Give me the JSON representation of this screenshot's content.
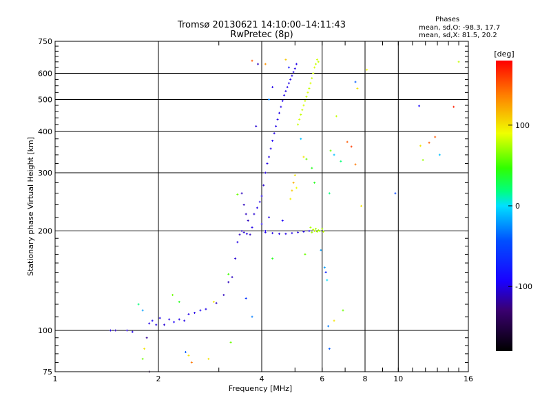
{
  "chart_data": {
    "type": "scatter",
    "title": "Tromsø 20130621 14:10:00–14:11:43",
    "subtitle": "RwPretec (8p)",
    "xlabel": "Frequency [MHz]",
    "ylabel": "Stationary phase Virtual Height [km]",
    "x_scale": "log2",
    "y_scale": "log",
    "xlim": [
      1,
      16
    ],
    "ylim": [
      75,
      750
    ],
    "x_ticks": [
      {
        "v": 1,
        "label": "1"
      },
      {
        "v": 2,
        "label": "2"
      },
      {
        "v": 4,
        "label": "4"
      },
      {
        "v": 6,
        "label": "6"
      },
      {
        "v": 8,
        "label": "8"
      },
      {
        "v": 10,
        "label": "10"
      },
      {
        "v": 16,
        "label": "16"
      }
    ],
    "x_grid": [
      2,
      4,
      6,
      8,
      10
    ],
    "y_ticks": [
      {
        "v": 75,
        "label": "75"
      },
      {
        "v": 100,
        "label": "100"
      },
      {
        "v": 200,
        "label": "200"
      },
      {
        "v": 300,
        "label": "300"
      },
      {
        "v": 400,
        "label": "400"
      },
      {
        "v": 500,
        "label": "500"
      },
      {
        "v": 600,
        "label": "600"
      },
      {
        "v": 750,
        "label": "750"
      }
    ],
    "y_grid": [
      100,
      200,
      300,
      400,
      500,
      600
    ],
    "grid": true,
    "stats": {
      "heading": "Phases",
      "line1": "mean, sd,O: -98.3, 17.7",
      "line2": "mean, sd,X:  81.5, 20.2"
    },
    "colorbar": {
      "label": "[deg]",
      "range": [
        -180,
        180
      ],
      "ticks": [
        {
          "v": 100,
          "label": "100"
        },
        {
          "v": 0,
          "label": "0"
        },
        {
          "v": -100,
          "label": "-100"
        }
      ]
    },
    "series": [
      {
        "mode": "O",
        "points": [
          [
            1.45,
            100,
            -100
          ],
          [
            1.5,
            100,
            -110
          ],
          [
            1.62,
            100,
            -105
          ],
          [
            1.68,
            99,
            -100
          ],
          [
            1.88,
            105,
            -100
          ],
          [
            1.92,
            107,
            -95
          ],
          [
            1.97,
            104,
            -100
          ],
          [
            2.02,
            109,
            -100
          ],
          [
            2.08,
            104,
            -105
          ],
          [
            2.15,
            108,
            -100
          ],
          [
            2.22,
            106,
            -95
          ],
          [
            2.3,
            108,
            -100
          ],
          [
            2.38,
            107,
            -100
          ],
          [
            2.45,
            112,
            -100
          ],
          [
            2.55,
            113,
            -100
          ],
          [
            2.65,
            115,
            -95
          ],
          [
            2.75,
            116,
            -100
          ],
          [
            2.95,
            121,
            -110
          ],
          [
            3.1,
            128,
            -110
          ],
          [
            3.2,
            140,
            -110
          ],
          [
            3.28,
            145,
            -110
          ],
          [
            3.35,
            165,
            -105
          ],
          [
            3.4,
            185,
            -100
          ],
          [
            3.45,
            195,
            -110
          ],
          [
            3.5,
            200,
            -110
          ],
          [
            3.55,
            198,
            -105
          ],
          [
            3.62,
            196,
            -100
          ],
          [
            3.7,
            195,
            -110
          ],
          [
            3.75,
            205,
            -100
          ],
          [
            3.8,
            225,
            -105
          ],
          [
            3.88,
            235,
            -100
          ],
          [
            3.95,
            245,
            -100
          ],
          [
            4.0,
            255,
            -100
          ],
          [
            4.05,
            275,
            -105
          ],
          [
            4.1,
            300,
            -100
          ],
          [
            4.15,
            320,
            -100
          ],
          [
            4.2,
            335,
            -100
          ],
          [
            4.25,
            355,
            -100
          ],
          [
            4.3,
            375,
            -95
          ],
          [
            4.35,
            395,
            -100
          ],
          [
            4.4,
            415,
            -100
          ],
          [
            4.45,
            435,
            -100
          ],
          [
            4.5,
            455,
            -100
          ],
          [
            4.55,
            475,
            -100
          ],
          [
            4.6,
            495,
            -100
          ],
          [
            4.65,
            515,
            -100
          ],
          [
            4.7,
            530,
            -100
          ],
          [
            4.75,
            545,
            -100
          ],
          [
            4.8,
            560,
            -100
          ],
          [
            4.85,
            575,
            -100
          ],
          [
            4.9,
            590,
            -100
          ],
          [
            4.95,
            605,
            -100
          ],
          [
            5.0,
            620,
            -100
          ],
          [
            5.05,
            640,
            -100
          ],
          [
            4.1,
            198,
            -100
          ],
          [
            4.3,
            197,
            -100
          ],
          [
            4.5,
            196,
            -100
          ],
          [
            4.7,
            196,
            -100
          ],
          [
            4.9,
            197,
            -100
          ],
          [
            5.1,
            198,
            -100
          ],
          [
            5.3,
            199,
            -100
          ],
          [
            5.5,
            200,
            -100
          ],
          [
            3.5,
            260,
            -110
          ],
          [
            3.55,
            240,
            -110
          ],
          [
            3.6,
            225,
            -110
          ],
          [
            3.65,
            215,
            -110
          ],
          [
            4.0,
            210,
            -100
          ],
          [
            4.2,
            220,
            -100
          ],
          [
            3.85,
            415,
            -105
          ],
          [
            4.3,
            545,
            -100
          ],
          [
            4.1,
            200,
            -95
          ],
          [
            4.6,
            215,
            -95
          ]
        ]
      },
      {
        "mode": "X",
        "points": [
          [
            5.1,
            420,
            80
          ],
          [
            5.15,
            435,
            85
          ],
          [
            5.2,
            450,
            80
          ],
          [
            5.25,
            465,
            82
          ],
          [
            5.3,
            480,
            85
          ],
          [
            5.35,
            495,
            80
          ],
          [
            5.4,
            510,
            82
          ],
          [
            5.45,
            525,
            85
          ],
          [
            5.5,
            540,
            80
          ],
          [
            5.55,
            560,
            85
          ],
          [
            5.6,
            580,
            80
          ],
          [
            5.65,
            600,
            82
          ],
          [
            5.7,
            625,
            85
          ],
          [
            5.75,
            640,
            80
          ],
          [
            5.8,
            660,
            82
          ],
          [
            5.85,
            650,
            80
          ],
          [
            4.85,
            250,
            95
          ],
          [
            4.9,
            265,
            110
          ],
          [
            4.95,
            280,
            120
          ],
          [
            5.0,
            295,
            100
          ],
          [
            5.05,
            270,
            90
          ],
          [
            5.55,
            205,
            75
          ],
          [
            5.6,
            198,
            72
          ],
          [
            5.65,
            202,
            78
          ],
          [
            5.7,
            200,
            80
          ],
          [
            5.75,
            203,
            74
          ],
          [
            5.8,
            199,
            76
          ],
          [
            5.85,
            201,
            72
          ],
          [
            5.9,
            200,
            70
          ],
          [
            6.0,
            203,
            75
          ],
          [
            6.05,
            199,
            78
          ]
        ]
      },
      {
        "mode": "noise",
        "points": [
          [
            1.8,
            115,
            -20
          ],
          [
            1.75,
            120,
            20
          ],
          [
            1.82,
            88,
            100
          ],
          [
            1.85,
            95,
            -120
          ],
          [
            1.8,
            82,
            60
          ],
          [
            1.88,
            75,
            -150
          ],
          [
            2.2,
            128,
            60
          ],
          [
            2.4,
            86,
            -40
          ],
          [
            2.5,
            80,
            140
          ],
          [
            2.45,
            84,
            100
          ],
          [
            2.3,
            122,
            40
          ],
          [
            2.8,
            82,
            100
          ],
          [
            2.9,
            122,
            100
          ],
          [
            3.2,
            148,
            50
          ],
          [
            3.25,
            92,
            60
          ],
          [
            3.4,
            258,
            60
          ],
          [
            3.6,
            125,
            -60
          ],
          [
            3.75,
            110,
            -30
          ],
          [
            3.75,
            655,
            150
          ],
          [
            3.9,
            640,
            -110
          ],
          [
            4.1,
            640,
            130
          ],
          [
            4.2,
            500,
            -30
          ],
          [
            4.7,
            660,
            110
          ],
          [
            4.8,
            625,
            -80
          ],
          [
            5.2,
            380,
            -10
          ],
          [
            5.3,
            335,
            100
          ],
          [
            5.4,
            330,
            60
          ],
          [
            5.6,
            310,
            40
          ],
          [
            5.7,
            280,
            40
          ],
          [
            5.95,
            175,
            -20
          ],
          [
            6.1,
            155,
            -20
          ],
          [
            6.15,
            150,
            -70
          ],
          [
            6.2,
            142,
            0
          ],
          [
            6.25,
            103,
            -30
          ],
          [
            6.3,
            88,
            -40
          ],
          [
            6.3,
            260,
            20
          ],
          [
            6.35,
            350,
            60
          ],
          [
            6.5,
            340,
            -10
          ],
          [
            6.8,
            325,
            20
          ],
          [
            7.1,
            372,
            150
          ],
          [
            7.3,
            360,
            160
          ],
          [
            7.5,
            318,
            140
          ],
          [
            7.8,
            238,
            100
          ],
          [
            7.6,
            540,
            100
          ],
          [
            7.5,
            565,
            -40
          ],
          [
            8.1,
            615,
            90
          ],
          [
            9.8,
            260,
            -50
          ],
          [
            11.5,
            478,
            -90
          ],
          [
            11.6,
            362,
            100
          ],
          [
            11.8,
            328,
            70
          ],
          [
            12.3,
            370,
            150
          ],
          [
            12.8,
            385,
            150
          ],
          [
            13.2,
            340,
            -10
          ],
          [
            14.5,
            475,
            170
          ],
          [
            15.0,
            650,
            80
          ],
          [
            6.6,
            445,
            80
          ],
          [
            6.9,
            115,
            60
          ],
          [
            6.5,
            107,
            100
          ],
          [
            5.35,
            170,
            60
          ],
          [
            4.3,
            165,
            40
          ]
        ]
      }
    ]
  }
}
